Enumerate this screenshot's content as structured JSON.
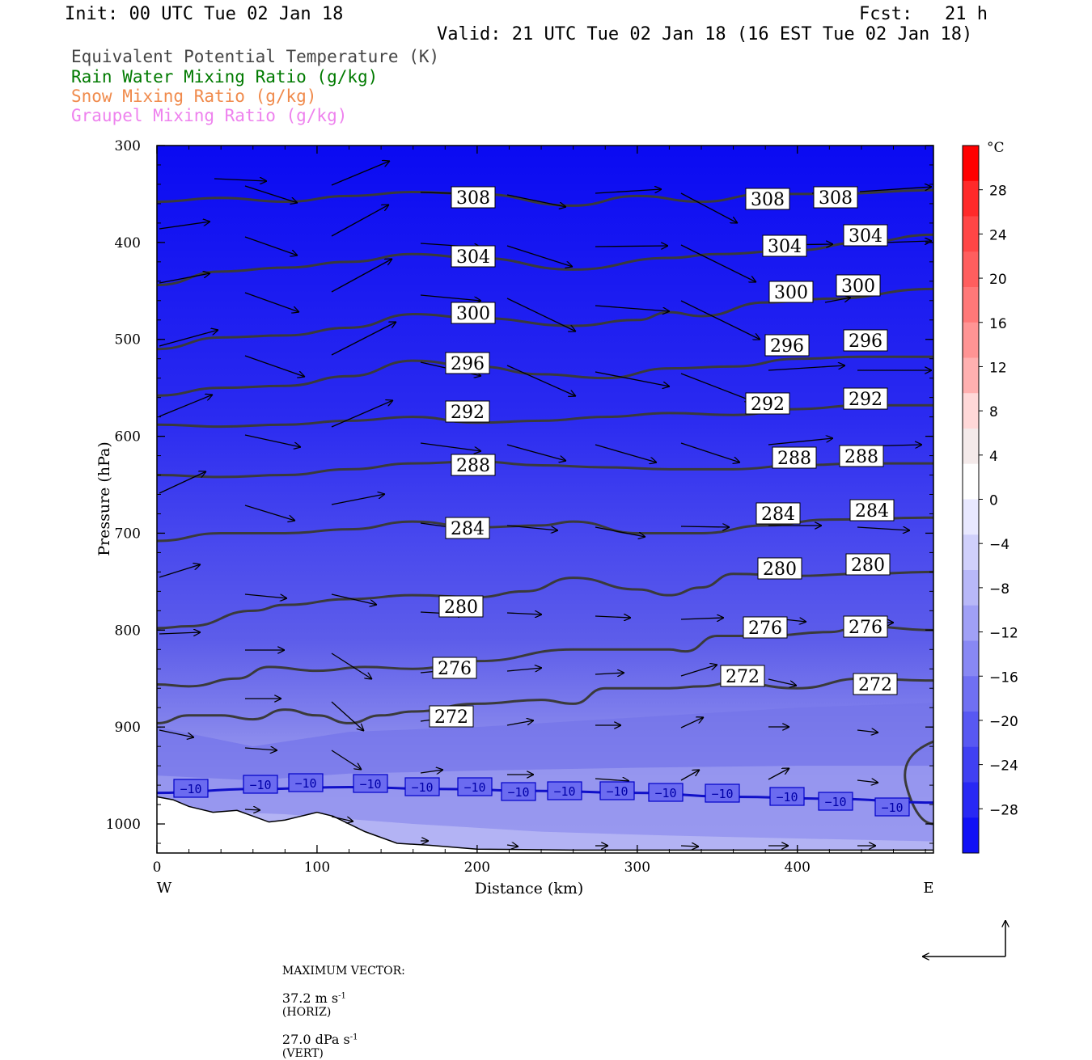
{
  "header": {
    "init": "Init: 00 UTC Tue 02 Jan 18",
    "fcst": "Fcst:   21 h",
    "valid": "Valid: 21 UTC Tue 02 Jan 18 (16 EST Tue 02 Jan 18)"
  },
  "legend": [
    {
      "label": "Equivalent Potential Temperature (K)",
      "color": "#444444"
    },
    {
      "label": "Rain Water Mixing Ratio (g/kg)",
      "color": "#007a00"
    },
    {
      "label": "Snow Mixing Ratio (g/kg)",
      "color": "#f08a4b"
    },
    {
      "label": "Graupel Mixing Ratio (g/kg)",
      "color": "#ee82ee"
    }
  ],
  "footer": {
    "max_vector_label": "MAXIMUM VECTOR:",
    "horiz_value": "37.2 m s",
    "horiz_unit": "(HORIZ)",
    "vert_value": "27.0 dPa s",
    "vert_unit": "(VERT)",
    "exponent": "-1"
  },
  "chart_data": {
    "type": "heatmap",
    "description_fields": "cross-section: filled temperature (degC), theta-e contours (K), -10 degC isotherm, wind vectors",
    "xlabel": "Distance (km)",
    "ylabel": "Pressure (hPa)",
    "x_ticks": [
      0,
      100,
      200,
      300,
      400
    ],
    "xlim": [
      0,
      485
    ],
    "y_ticks": [
      300,
      400,
      500,
      600,
      700,
      800,
      900,
      1000
    ],
    "ylim": [
      1030,
      300
    ],
    "y_scale": "linear-pressure",
    "left_edge_label": "W",
    "right_edge_label": "E",
    "colorbar": {
      "unit": "°C",
      "tick_labels": [
        "28",
        "24",
        "20",
        "16",
        "12",
        "8",
        "4",
        "0",
        "-4",
        "-8",
        "-12",
        "-16",
        "-20",
        "-24",
        "-28"
      ],
      "range": [
        -32,
        32
      ]
    },
    "theta_e_contours": [
      {
        "level": 308,
        "label_text": "308",
        "points": [
          [
            0,
            358
          ],
          [
            40,
            354
          ],
          [
            80,
            358
          ],
          [
            120,
            352
          ],
          [
            160,
            348
          ],
          [
            200,
            350
          ],
          [
            260,
            362
          ],
          [
            300,
            352
          ],
          [
            340,
            358
          ],
          [
            380,
            350
          ],
          [
            420,
            350
          ],
          [
            485,
            346
          ]
        ]
      },
      {
        "level": 304,
        "label_text": "304",
        "points": [
          [
            0,
            444
          ],
          [
            40,
            430
          ],
          [
            80,
            426
          ],
          [
            120,
            420
          ],
          [
            160,
            412
          ],
          [
            200,
            416
          ],
          [
            260,
            428
          ],
          [
            320,
            416
          ],
          [
            350,
            412
          ],
          [
            400,
            408
          ],
          [
            440,
            400
          ],
          [
            485,
            392
          ]
        ]
      },
      {
        "level": 300,
        "label_text": "300",
        "points": [
          [
            0,
            510
          ],
          [
            40,
            498
          ],
          [
            80,
            496
          ],
          [
            120,
            488
          ],
          [
            160,
            474
          ],
          [
            200,
            478
          ],
          [
            260,
            486
          ],
          [
            300,
            480
          ],
          [
            320,
            472
          ],
          [
            340,
            476
          ],
          [
            380,
            462
          ],
          [
            420,
            458
          ],
          [
            485,
            448
          ]
        ]
      },
      {
        "level": 296,
        "label_text": "296",
        "points": [
          [
            0,
            558
          ],
          [
            40,
            550
          ],
          [
            80,
            548
          ],
          [
            120,
            538
          ],
          [
            160,
            522
          ],
          [
            200,
            528
          ],
          [
            240,
            536
          ],
          [
            280,
            540
          ],
          [
            320,
            530
          ],
          [
            360,
            528
          ],
          [
            400,
            520
          ],
          [
            440,
            518
          ],
          [
            485,
            518
          ]
        ]
      },
      {
        "level": 292,
        "label_text": "292",
        "points": [
          [
            0,
            588
          ],
          [
            40,
            590
          ],
          [
            80,
            588
          ],
          [
            120,
            584
          ],
          [
            160,
            580
          ],
          [
            200,
            586
          ],
          [
            240,
            584
          ],
          [
            280,
            580
          ],
          [
            320,
            576
          ],
          [
            360,
            578
          ],
          [
            400,
            572
          ],
          [
            440,
            568
          ],
          [
            485,
            568
          ]
        ]
      },
      {
        "level": 288,
        "label_text": "288",
        "points": [
          [
            0,
            640
          ],
          [
            40,
            642
          ],
          [
            80,
            640
          ],
          [
            120,
            634
          ],
          [
            160,
            628
          ],
          [
            200,
            626
          ],
          [
            240,
            630
          ],
          [
            280,
            632
          ],
          [
            320,
            634
          ],
          [
            360,
            634
          ],
          [
            400,
            630
          ],
          [
            440,
            628
          ],
          [
            485,
            628
          ]
        ]
      },
      {
        "level": 284,
        "label_text": "284",
        "points": [
          [
            0,
            708
          ],
          [
            40,
            700
          ],
          [
            80,
            700
          ],
          [
            120,
            696
          ],
          [
            160,
            688
          ],
          [
            200,
            694
          ],
          [
            240,
            692
          ],
          [
            260,
            688
          ],
          [
            300,
            700
          ],
          [
            340,
            700
          ],
          [
            380,
            692
          ],
          [
            420,
            686
          ],
          [
            485,
            684
          ]
        ]
      },
      {
        "level": 280,
        "label_text": "280",
        "points": [
          [
            0,
            798
          ],
          [
            20,
            796
          ],
          [
            60,
            780
          ],
          [
            80,
            774
          ],
          [
            120,
            768
          ],
          [
            160,
            764
          ],
          [
            200,
            766
          ],
          [
            230,
            760
          ],
          [
            260,
            746
          ],
          [
            300,
            758
          ],
          [
            320,
            764
          ],
          [
            340,
            756
          ],
          [
            360,
            742
          ],
          [
            400,
            744
          ],
          [
            440,
            742
          ],
          [
            485,
            740
          ]
        ]
      },
      {
        "level": 276,
        "label_text": "276",
        "points": [
          [
            0,
            856
          ],
          [
            20,
            858
          ],
          [
            50,
            850
          ],
          [
            70,
            838
          ],
          [
            100,
            842
          ],
          [
            130,
            838
          ],
          [
            160,
            840
          ],
          [
            200,
            832
          ],
          [
            260,
            820
          ],
          [
            320,
            820
          ],
          [
            330,
            822
          ],
          [
            350,
            806
          ],
          [
            380,
            806
          ],
          [
            420,
            802
          ],
          [
            440,
            796
          ],
          [
            485,
            800
          ]
        ]
      },
      {
        "level": 272,
        "label_text": "272",
        "points": [
          [
            0,
            896
          ],
          [
            20,
            888
          ],
          [
            40,
            888
          ],
          [
            60,
            892
          ],
          [
            80,
            882
          ],
          [
            100,
            888
          ],
          [
            120,
            896
          ],
          [
            140,
            888
          ],
          [
            160,
            884
          ],
          [
            200,
            876
          ],
          [
            240,
            872
          ],
          [
            260,
            876
          ],
          [
            280,
            860
          ],
          [
            320,
            860
          ],
          [
            340,
            858
          ],
          [
            360,
            854
          ],
          [
            400,
            860
          ],
          [
            440,
            850
          ],
          [
            485,
            852
          ]
        ]
      }
    ],
    "isotherm_minus10": {
      "level_c": -10,
      "label_text": "-10",
      "points": [
        [
          0,
          968
        ],
        [
          60,
          964
        ],
        [
          120,
          962
        ],
        [
          180,
          964
        ],
        [
          240,
          966
        ],
        [
          300,
          968
        ],
        [
          360,
          972
        ],
        [
          420,
          974
        ],
        [
          485,
          978
        ]
      ]
    },
    "wind_vectors_max": {
      "horiz_ms": 37.2,
      "vert_dpas": 27.0
    }
  }
}
